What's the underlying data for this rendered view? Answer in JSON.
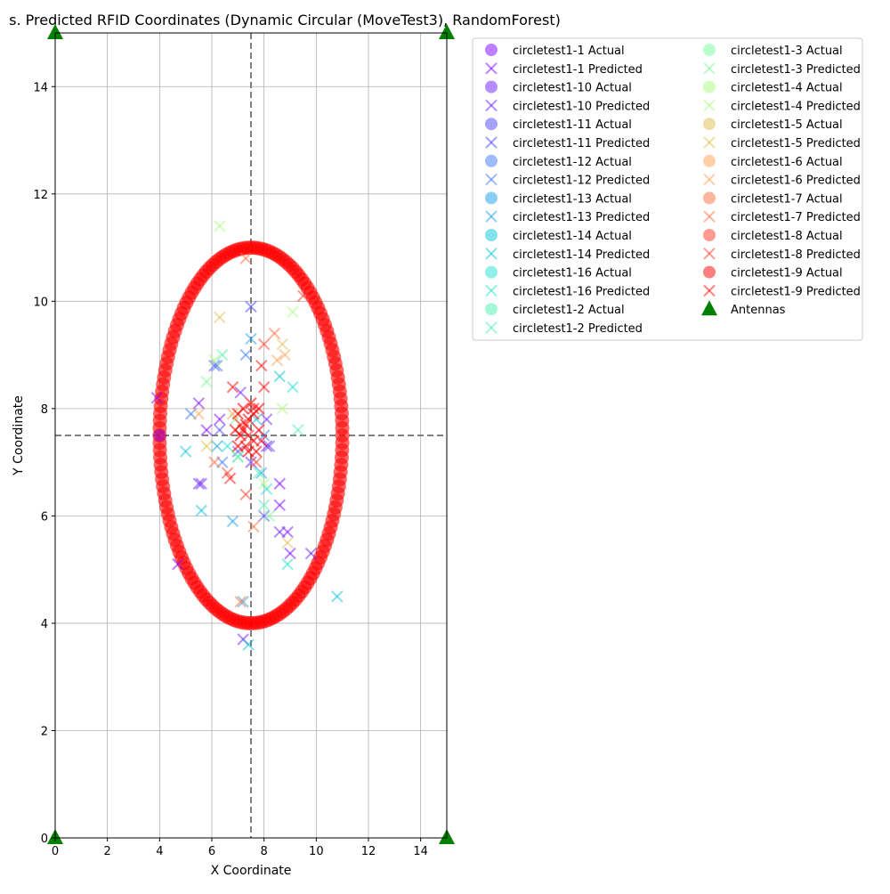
{
  "chart_data": {
    "type": "scatter",
    "title": "s. Predicted RFID Coordinates (Dynamic Circular (MoveTest3), RandomForest)",
    "xlabel": "X Coordinate",
    "ylabel": "Y Coordinate",
    "xlim": [
      0,
      15
    ],
    "ylim": [
      0,
      15
    ],
    "xticks": [
      0,
      2,
      4,
      6,
      8,
      10,
      12,
      14
    ],
    "yticks": [
      0,
      2,
      4,
      6,
      8,
      10,
      12,
      14
    ],
    "grid": true,
    "legend_placement": "outside-top-right",
    "reference_lines": {
      "x": 7.5,
      "y": 7.5,
      "style": "dashed",
      "color": "#808080"
    },
    "actual_path": {
      "center": [
        7.5,
        7.5
      ],
      "radius_x": 3.5,
      "radius_y": 3.5,
      "color": "#ff0000"
    },
    "antennas": {
      "name": "Antennas",
      "color": "#008000",
      "points": [
        [
          0,
          15
        ],
        [
          15,
          15
        ],
        [
          0,
          0
        ],
        [
          15,
          0
        ]
      ]
    },
    "series": [
      {
        "name": "circletest1-1",
        "actual_label": "circletest1-1 Actual",
        "predicted_label": "circletest1-1 Predicted",
        "color": "#8000ff",
        "predicted": [
          [
            3.9,
            8.2
          ],
          [
            5.5,
            8.1
          ],
          [
            5.8,
            7.6
          ],
          [
            8.6,
            6.6
          ],
          [
            8.9,
            5.7
          ],
          [
            9.0,
            5.3
          ],
          [
            8.6,
            6.2
          ],
          [
            8.1,
            7.3
          ],
          [
            6.3,
            7.8
          ],
          [
            4.7,
            5.1
          ]
        ]
      },
      {
        "name": "circletest1-10",
        "actual_label": "circletest1-10 Actual",
        "predicted_label": "circletest1-10 Predicted",
        "color": "#6a1cfe",
        "predicted": [
          [
            5.5,
            6.6
          ],
          [
            5.6,
            6.6
          ],
          [
            9.8,
            5.3
          ],
          [
            7.1,
            8.3
          ],
          [
            7.5,
            7.0
          ],
          [
            8.1,
            7.8
          ],
          [
            8.6,
            5.7
          ],
          [
            7.2,
            3.7
          ]
        ]
      },
      {
        "name": "circletest1-11",
        "actual_label": "circletest1-11 Actual",
        "predicted_label": "circletest1-11 Predicted",
        "color": "#4f46fa",
        "predicted": [
          [
            6.1,
            8.8
          ],
          [
            7.5,
            9.9
          ],
          [
            8.2,
            7.3
          ],
          [
            6.3,
            7.6
          ],
          [
            7.0,
            7.2
          ],
          [
            8.0,
            6.0
          ]
        ]
      },
      {
        "name": "circletest1-12",
        "actual_label": "circletest1-12 Actual",
        "predicted_label": "circletest1-12 Predicted",
        "color": "#3a78f1",
        "predicted": [
          [
            6.2,
            8.8
          ],
          [
            7.3,
            9.0
          ],
          [
            5.2,
            7.9
          ],
          [
            8.0,
            7.5
          ],
          [
            6.4,
            7.0
          ]
        ]
      },
      {
        "name": "circletest1-13",
        "actual_label": "circletest1-13 Actual",
        "predicted_label": "circletest1-13 Predicted",
        "color": "#1ca0ea",
        "predicted": [
          [
            6.8,
            5.9
          ],
          [
            7.5,
            9.3
          ],
          [
            6.2,
            7.3
          ],
          [
            7.9,
            6.8
          ],
          [
            7.2,
            4.4
          ]
        ]
      },
      {
        "name": "circletest1-14",
        "actual_label": "circletest1-14 Actual",
        "predicted_label": "circletest1-14 Predicted",
        "color": "#08c3dc",
        "predicted": [
          [
            5.0,
            7.2
          ],
          [
            5.6,
            6.1
          ],
          [
            10.8,
            4.5
          ],
          [
            8.6,
            8.6
          ],
          [
            7.4,
            3.6
          ],
          [
            7.7,
            7.8
          ]
        ]
      },
      {
        "name": "circletest1-16",
        "actual_label": "circletest1-16 Actual",
        "predicted_label": "circletest1-16 Predicted",
        "color": "#22e0d1",
        "predicted": [
          [
            9.1,
            8.4
          ],
          [
            8.9,
            5.1
          ],
          [
            7.0,
            7.1
          ],
          [
            6.6,
            7.3
          ],
          [
            8.1,
            6.5
          ]
        ]
      },
      {
        "name": "circletest1-2",
        "actual_label": "circletest1-2 Actual",
        "predicted_label": "circletest1-2 Predicted",
        "color": "#4cf2b0",
        "predicted": [
          [
            9.3,
            7.6
          ],
          [
            6.4,
            9.0
          ],
          [
            7.8,
            6.8
          ],
          [
            8.0,
            6.2
          ]
        ]
      },
      {
        "name": "circletest1-3",
        "actual_label": "circletest1-3 Actual",
        "predicted_label": "circletest1-3 Predicted",
        "color": "#78fc98",
        "predicted": [
          [
            5.8,
            8.5
          ],
          [
            7.0,
            7.1
          ],
          [
            8.2,
            6.0
          ],
          [
            6.9,
            7.8
          ]
        ]
      },
      {
        "name": "circletest1-4",
        "actual_label": "circletest1-4 Actual",
        "predicted_label": "circletest1-4 Predicted",
        "color": "#a8fc7c",
        "predicted": [
          [
            6.3,
            11.4
          ],
          [
            9.1,
            9.8
          ],
          [
            8.7,
            8.0
          ],
          [
            8.0,
            6.6
          ],
          [
            6.1,
            8.9
          ]
        ]
      },
      {
        "name": "circletest1-5",
        "actual_label": "circletest1-5 Actual",
        "predicted_label": "circletest1-5 Predicted",
        "color": "#e0c050",
        "predicted": [
          [
            6.3,
            9.7
          ],
          [
            5.8,
            7.3
          ],
          [
            8.7,
            9.2
          ],
          [
            8.9,
            5.5
          ]
        ]
      },
      {
        "name": "circletest1-6",
        "actual_label": "circletest1-6 Actual",
        "predicted_label": "circletest1-6 Predicted",
        "color": "#ffa256",
        "predicted": [
          [
            8.8,
            9.0
          ],
          [
            5.5,
            7.9
          ],
          [
            6.8,
            7.9
          ],
          [
            8.5,
            8.9
          ]
        ]
      },
      {
        "name": "circletest1-7",
        "actual_label": "circletest1-7 Actual",
        "predicted_label": "circletest1-7 Predicted",
        "color": "#ff6e40",
        "predicted": [
          [
            7.1,
            4.4
          ],
          [
            8.4,
            9.4
          ],
          [
            6.1,
            7.0
          ],
          [
            7.6,
            5.8
          ],
          [
            7.3,
            10.8
          ]
        ]
      },
      {
        "name": "circletest1-8",
        "actual_label": "circletest1-8 Actual",
        "predicted_label": "circletest1-8 Predicted",
        "color": "#ff3822",
        "predicted": [
          [
            8.0,
            9.2
          ],
          [
            7.3,
            6.4
          ],
          [
            9.5,
            10.1
          ],
          [
            7.7,
            7.0
          ],
          [
            6.6,
            6.8
          ]
        ]
      },
      {
        "name": "circletest1-9",
        "actual_label": "circletest1-9 Actual",
        "predicted_label": "circletest1-9 Predicted",
        "color": "#ff0000",
        "predicted": [
          [
            7.9,
            8.8
          ],
          [
            8.0,
            8.4
          ],
          [
            7.1,
            7.7
          ],
          [
            7.4,
            7.5
          ],
          [
            6.8,
            8.4
          ],
          [
            6.7,
            6.7
          ],
          [
            7.9,
            7.4
          ],
          [
            7.6,
            8.0
          ]
        ]
      }
    ]
  }
}
